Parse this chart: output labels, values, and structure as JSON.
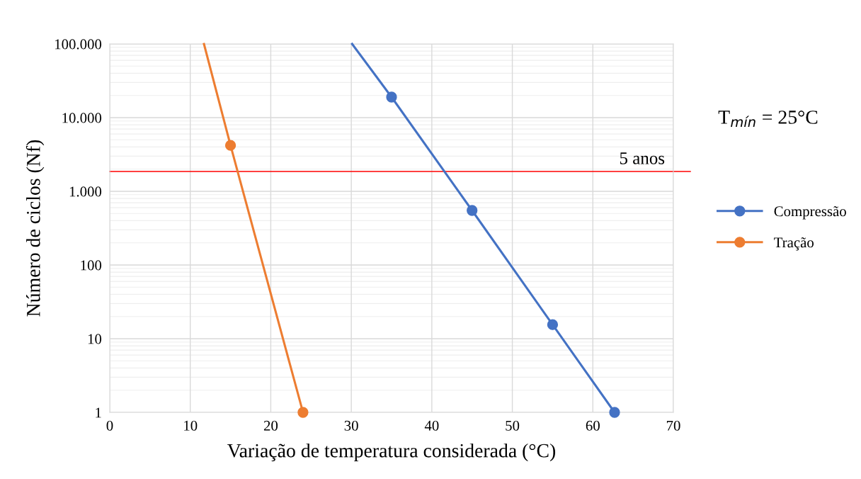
{
  "chart_data": {
    "type": "line",
    "xlabel": "Variação de temperatura considerada (°C)",
    "ylabel": "Número de ciclos (Nf)",
    "log": "y",
    "grid": true,
    "legend": "right",
    "marker": "circle",
    "line_style": "solid",
    "xlim": [
      0,
      70
    ],
    "xticks": [
      0,
      10,
      20,
      30,
      40,
      50,
      60,
      70
    ],
    "ylim": [
      1,
      100000
    ],
    "yticks": [
      1,
      10,
      100,
      {
        "value": 1000,
        "label": "1.000"
      },
      {
        "value": 10000,
        "label": "10.000"
      },
      {
        "value": 100000,
        "label": "100.000"
      }
    ],
    "series": [
      {
        "name": "Compressão",
        "color": "#4472c4",
        "x": [
          35,
          45,
          55,
          62.7
        ],
        "values": [
          19000,
          550,
          15.5,
          1
        ]
      },
      {
        "name": "Tração",
        "color": "#ed7d31",
        "x": [
          15,
          24
        ],
        "values": [
          4200,
          1
        ]
      },
      {
        "color": "#4472c4",
        "marker": "none",
        "x": [
          30.1,
          35
        ],
        "values": [
          100000,
          19000
        ]
      },
      {
        "color": "#ed7d31",
        "marker": "none",
        "x": [
          11.7,
          15
        ],
        "values": [
          100000,
          4200
        ]
      }
    ],
    "ref_lines": [
      {
        "axis": "y",
        "value": 1860,
        "label": "5 anos",
        "color": "#ff0000"
      }
    ],
    "annotations": [
      "T$_{mín}$ = 25°C"
    ]
  }
}
